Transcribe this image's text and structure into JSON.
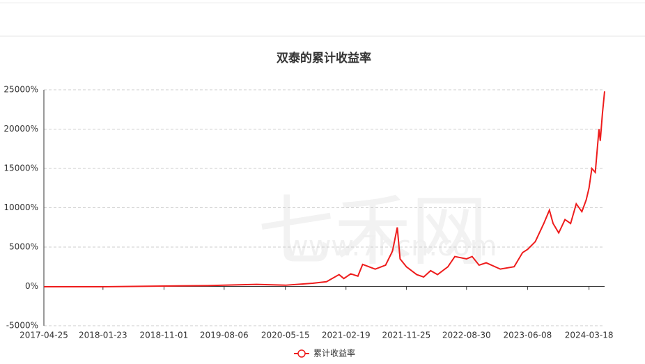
{
  "chart_data": {
    "type": "line",
    "title": "双泰的累计收益率",
    "watermark": [
      "七禾网",
      "www.7hcn.com"
    ],
    "x": [
      "2017-04-25",
      "2018-01-23",
      "2018-11-01",
      "2019-05-21",
      "2019-08-06",
      "2020-01-03",
      "2020-05-15",
      "2020-09-18",
      "2020-11-21",
      "2021-01-18",
      "2021-02-09",
      "2021-03-13",
      "2021-04-15",
      "2021-05-07",
      "2021-07-04",
      "2021-08-21",
      "2021-09-22",
      "2021-10-14",
      "2021-10-27",
      "2021-11-25",
      "2022-01-12",
      "2022-02-13",
      "2022-03-17",
      "2022-04-18",
      "2022-06-05",
      "2022-07-07",
      "2022-08-30",
      "2022-09-25",
      "2022-10-27",
      "2022-11-29",
      "2023-02-02",
      "2023-04-07",
      "2023-05-16",
      "2023-06-08",
      "2023-07-14",
      "2023-08-22",
      "2023-09-17",
      "2023-10-04",
      "2023-10-30",
      "2023-11-28",
      "2023-12-24",
      "2024-01-19",
      "2024-02-14",
      "2024-03-05",
      "2024-03-18",
      "2024-03-31",
      "2024-04-16",
      "2024-05-03",
      "2024-05-09",
      "2024-05-19",
      "2024-05-29"
    ],
    "series": [
      {
        "name": "累计收益率",
        "color": "#ee1c1c",
        "values": [
          -50,
          -50,
          50,
          100,
          150,
          250,
          150,
          400,
          600,
          1500,
          1000,
          1600,
          1300,
          2800,
          2200,
          2700,
          4500,
          7500,
          3500,
          2500,
          1500,
          1200,
          2000,
          1500,
          2500,
          3800,
          3500,
          3800,
          2700,
          3000,
          2200,
          2500,
          4300,
          4700,
          5700,
          8000,
          9700,
          8000,
          6800,
          8500,
          8000,
          10500,
          9500,
          11000,
          12500,
          15000,
          14500,
          20000,
          18500,
          22000,
          24800
        ]
      }
    ],
    "xlim": [
      "2017-04-25",
      "2024-05-29"
    ],
    "xticks": [
      "2017-04-25",
      "2018-01-23",
      "2018-11-01",
      "2019-08-06",
      "2020-05-15",
      "2021-02-19",
      "2021-11-25",
      "2022-08-30",
      "2023-06-08",
      "2024-03-18"
    ],
    "ylim": [
      -5000,
      25000
    ],
    "yticks": [
      {
        "value": -5000,
        "label": "-5000%"
      },
      {
        "value": 0,
        "label": "0%"
      },
      {
        "value": 5000,
        "label": "5000%"
      },
      {
        "value": 10000,
        "label": "10000%"
      },
      {
        "value": 15000,
        "label": "15000%"
      },
      {
        "value": 20000,
        "label": "20000%"
      },
      {
        "value": 25000,
        "label": "25000%"
      }
    ],
    "grid": true
  }
}
